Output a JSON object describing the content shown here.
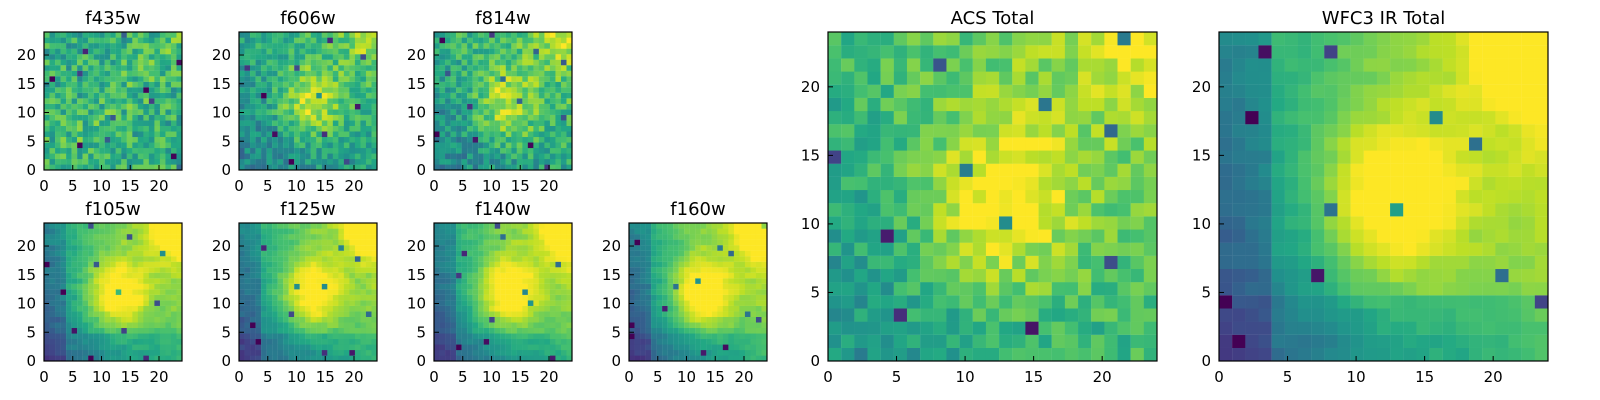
{
  "chart_data": [
    {
      "type": "heatmap",
      "title": "f435w",
      "colormap": "viridis",
      "grid_size": 25,
      "xlim": [
        0,
        24
      ],
      "ylim": [
        0,
        24
      ],
      "x_ticks": [
        "0",
        "5",
        "10",
        "15",
        "20"
      ],
      "y_ticks": [
        "0",
        "5",
        "10",
        "15",
        "20"
      ],
      "pattern": "noise",
      "seed": 11,
      "mean": 0.62,
      "noise": 0.34,
      "gradient_x": 0.0,
      "gradient_y": 0.0,
      "center_strength": 0.05
    },
    {
      "type": "heatmap",
      "title": "f606w",
      "colormap": "viridis",
      "grid_size": 25,
      "xlim": [
        0,
        24
      ],
      "ylim": [
        0,
        24
      ],
      "x_ticks": [
        "0",
        "5",
        "10",
        "15",
        "20"
      ],
      "y_ticks": [
        "0",
        "5",
        "10",
        "15",
        "20"
      ],
      "pattern": "galaxy",
      "seed": 23,
      "mean": 0.42,
      "noise": 0.26,
      "gradient_x": 0.15,
      "gradient_y": 0.18,
      "center_strength": 0.32
    },
    {
      "type": "heatmap",
      "title": "f814w",
      "colormap": "viridis",
      "grid_size": 25,
      "xlim": [
        0,
        24
      ],
      "ylim": [
        0,
        24
      ],
      "x_ticks": [
        "0",
        "5",
        "10",
        "15",
        "20"
      ],
      "y_ticks": [
        "0",
        "5",
        "10",
        "15",
        "20"
      ],
      "pattern": "galaxy",
      "seed": 31,
      "mean": 0.44,
      "noise": 0.28,
      "gradient_x": 0.16,
      "gradient_y": 0.18,
      "center_strength": 0.3
    },
    {
      "type": "heatmap",
      "title": "f105w",
      "colormap": "viridis",
      "grid_size": 25,
      "xlim": [
        0,
        24
      ],
      "ylim": [
        0,
        24
      ],
      "x_ticks": [
        "0",
        "5",
        "10",
        "15",
        "20"
      ],
      "y_ticks": [
        "0",
        "5",
        "10",
        "15",
        "20"
      ],
      "pattern": "smooth",
      "seed": 41,
      "mean": 0.36,
      "noise": 0.12,
      "gradient_x": 0.36,
      "gradient_y": 0.22,
      "center_strength": 0.44
    },
    {
      "type": "heatmap",
      "title": "f125w",
      "colormap": "viridis",
      "grid_size": 25,
      "xlim": [
        0,
        24
      ],
      "ylim": [
        0,
        24
      ],
      "x_ticks": [
        "0",
        "5",
        "10",
        "15",
        "20"
      ],
      "y_ticks": [
        "0",
        "5",
        "10",
        "15",
        "20"
      ],
      "pattern": "smooth",
      "seed": 43,
      "mean": 0.35,
      "noise": 0.12,
      "gradient_x": 0.36,
      "gradient_y": 0.24,
      "center_strength": 0.42
    },
    {
      "type": "heatmap",
      "title": "f140w",
      "colormap": "viridis",
      "grid_size": 25,
      "xlim": [
        0,
        24
      ],
      "ylim": [
        0,
        24
      ],
      "x_ticks": [
        "0",
        "5",
        "10",
        "15",
        "20"
      ],
      "y_ticks": [
        "0",
        "5",
        "10",
        "15",
        "20"
      ],
      "pattern": "smooth",
      "seed": 47,
      "mean": 0.34,
      "noise": 0.11,
      "gradient_x": 0.38,
      "gradient_y": 0.25,
      "center_strength": 0.44
    },
    {
      "type": "heatmap",
      "title": "f160w",
      "colormap": "viridis",
      "grid_size": 25,
      "xlim": [
        0,
        24
      ],
      "ylim": [
        0,
        24
      ],
      "x_ticks": [
        "0",
        "5",
        "10",
        "15",
        "20"
      ],
      "y_ticks": [
        "0",
        "5",
        "10",
        "15",
        "20"
      ],
      "pattern": "smooth",
      "seed": 53,
      "mean": 0.33,
      "noise": 0.1,
      "gradient_x": 0.4,
      "gradient_y": 0.25,
      "center_strength": 0.45
    },
    {
      "type": "heatmap",
      "title": "ACS Total",
      "colormap": "viridis",
      "grid_size": 25,
      "xlim": [
        0,
        24
      ],
      "ylim": [
        0,
        24
      ],
      "x_ticks": [
        "0",
        "5",
        "10",
        "15",
        "20"
      ],
      "y_ticks": [
        "0",
        "5",
        "10",
        "15",
        "20"
      ],
      "pattern": "galaxy",
      "seed": 67,
      "mean": 0.5,
      "noise": 0.22,
      "gradient_x": 0.18,
      "gradient_y": 0.18,
      "center_strength": 0.36
    },
    {
      "type": "heatmap",
      "title": "WFC3 IR Total",
      "colormap": "viridis",
      "grid_size": 25,
      "xlim": [
        0,
        24
      ],
      "ylim": [
        0,
        24
      ],
      "x_ticks": [
        "0",
        "5",
        "10",
        "15",
        "20"
      ],
      "y_ticks": [
        "0",
        "5",
        "10",
        "15",
        "20"
      ],
      "pattern": "smooth",
      "seed": 79,
      "mean": 0.36,
      "noise": 0.09,
      "gradient_x": 0.42,
      "gradient_y": 0.22,
      "center_strength": 0.42
    }
  ]
}
